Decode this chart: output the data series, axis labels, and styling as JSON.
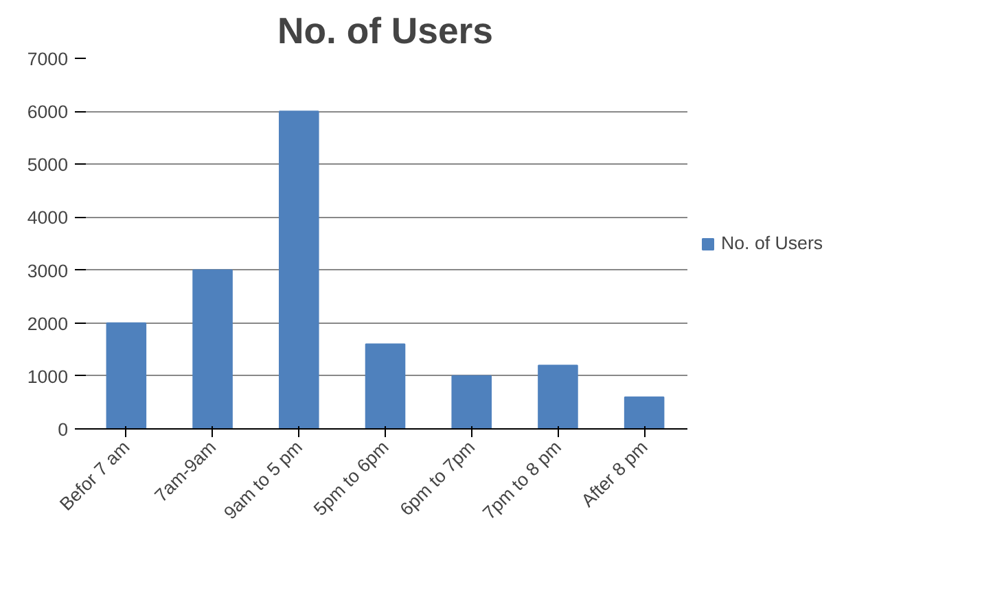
{
  "chart_data": {
    "type": "bar",
    "title": "No. of Users",
    "categories": [
      "Befor 7 am",
      "7am-9am",
      "9am to 5 pm",
      "5pm to 6pm",
      "6pm to 7pm",
      "7pm to 8 pm",
      "After 8 pm"
    ],
    "series": [
      {
        "name": "No. of Users",
        "color": "#4f81bd",
        "values": [
          2000,
          3000,
          6000,
          1600,
          1000,
          1200,
          600
        ]
      }
    ],
    "ylim": [
      0,
      7000
    ],
    "yticks": [
      0,
      1000,
      2000,
      3000,
      4000,
      5000,
      6000,
      7000
    ],
    "grid": "y",
    "legend": "right"
  }
}
